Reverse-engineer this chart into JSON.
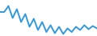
{
  "x": [
    0,
    1,
    2,
    3,
    4,
    5,
    6,
    7,
    8,
    9,
    10,
    11,
    12,
    13,
    14,
    15,
    16,
    17,
    18,
    19,
    20,
    21,
    22,
    23
  ],
  "y": [
    55,
    55,
    70,
    40,
    62,
    30,
    50,
    18,
    38,
    10,
    30,
    5,
    22,
    2,
    18,
    0,
    14,
    5,
    18,
    10,
    22,
    12,
    20,
    14
  ],
  "line_color": "#3399dd",
  "linewidth": 1.4,
  "background_color": "#ffffff",
  "ylim": [
    -5,
    85
  ],
  "xlim_min": 0,
  "xlim_max": 23
}
